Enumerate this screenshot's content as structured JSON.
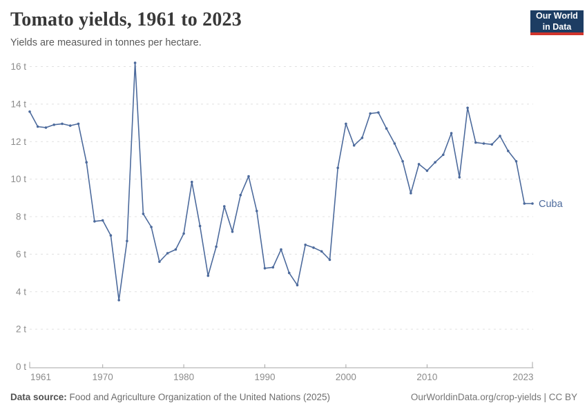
{
  "header": {
    "title": "Tomato yields, 1961 to 2023",
    "subtitle": "Yields are measured in tonnes per hectare."
  },
  "logo": {
    "line1": "Our World",
    "line2": "in Data"
  },
  "chart_data": {
    "type": "line",
    "title": "Tomato yields, 1961 to 2023",
    "subtitle": "Yields are measured in tonnes per hectare.",
    "unit": "tonnes per hectare",
    "grid": true,
    "legend_position": "right-end-label",
    "xlim": [
      1961,
      2023
    ],
    "ylim": [
      0,
      16
    ],
    "x_ticks": [
      1961,
      1970,
      1980,
      1990,
      2000,
      2010,
      2023
    ],
    "y_ticks": [
      {
        "value": 0,
        "label": "0 t"
      },
      {
        "value": 2,
        "label": "2 t"
      },
      {
        "value": 4,
        "label": "4 t"
      },
      {
        "value": 6,
        "label": "6 t"
      },
      {
        "value": 8,
        "label": "8 t"
      },
      {
        "value": 10,
        "label": "10 t"
      },
      {
        "value": 12,
        "label": "12 t"
      },
      {
        "value": 14,
        "label": "14 t"
      },
      {
        "value": 16,
        "label": "16 t"
      }
    ],
    "series": [
      {
        "name": "Cuba",
        "color": "#4c6a9c",
        "x": [
          1961,
          1962,
          1963,
          1964,
          1965,
          1966,
          1967,
          1968,
          1969,
          1970,
          1971,
          1972,
          1973,
          1974,
          1975,
          1976,
          1977,
          1978,
          1979,
          1980,
          1981,
          1982,
          1983,
          1984,
          1985,
          1986,
          1987,
          1988,
          1989,
          1990,
          1991,
          1992,
          1993,
          1994,
          1995,
          1996,
          1997,
          1998,
          1999,
          2000,
          2001,
          2002,
          2003,
          2004,
          2005,
          2006,
          2007,
          2008,
          2009,
          2010,
          2011,
          2012,
          2013,
          2014,
          2015,
          2016,
          2017,
          2018,
          2019,
          2020,
          2021,
          2022,
          2023
        ],
        "values": [
          13.6,
          12.8,
          12.75,
          12.9,
          12.95,
          12.85,
          12.95,
          10.9,
          7.75,
          7.8,
          7.0,
          3.55,
          6.7,
          16.2,
          8.15,
          7.45,
          5.6,
          6.05,
          6.25,
          7.1,
          9.85,
          7.5,
          4.85,
          6.4,
          8.55,
          7.2,
          9.15,
          10.15,
          8.3,
          5.25,
          5.3,
          6.25,
          5.0,
          4.35,
          6.5,
          6.35,
          6.15,
          5.7,
          10.6,
          12.95,
          11.8,
          12.2,
          13.5,
          13.55,
          12.7,
          11.9,
          10.95,
          9.25,
          10.8,
          10.45,
          10.9,
          11.3,
          12.45,
          10.1,
          13.8,
          11.95,
          11.9,
          11.85,
          12.3,
          11.5,
          10.95,
          8.7,
          8.7
        ]
      }
    ]
  },
  "footer": {
    "source_label": "Data source:",
    "source_text": "Food and Agriculture Organization of the United Nations (2025)",
    "license": "OurWorldinData.org/crop-yields | CC BY"
  },
  "colors": {
    "line": "#4c6a9c",
    "grid": "#e0e0e0",
    "axis": "#a5a5a5",
    "tick_label": "#8c8c8c",
    "logo_bg": "#1d3d63",
    "logo_accent": "#d0342c"
  }
}
